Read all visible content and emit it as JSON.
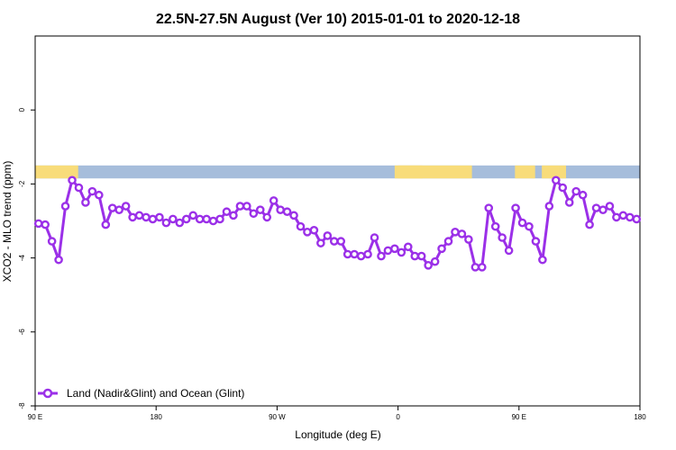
{
  "chart_data": {
    "type": "line",
    "title": "22.5N-27.5N August (Ver 10)   2015-01-01 to 2020-12-18",
    "xlabel": "Longitude (deg E)",
    "ylabel": "XCO2 - MLO trend (ppm)",
    "x_ticks": [
      {
        "value": 90,
        "label": "90 E"
      },
      {
        "value": 180,
        "label": "180"
      },
      {
        "value": 270,
        "label": "90 W"
      },
      {
        "value": 360,
        "label": "0"
      },
      {
        "value": 450,
        "label": "90 E"
      },
      {
        "value": 540,
        "label": "180"
      }
    ],
    "y_ticks": [
      {
        "value": 0,
        "label": "0"
      },
      {
        "value": -2,
        "label": "-2"
      },
      {
        "value": -4,
        "label": "-4"
      },
      {
        "value": -6,
        "label": "-6"
      },
      {
        "value": -8,
        "label": "-8"
      }
    ],
    "xlim": [
      90,
      540
    ],
    "ylim": [
      -8,
      2
    ],
    "grid": false,
    "legend_position": "bottom-left",
    "land_ocean_strip": {
      "y_range": [
        -1.85,
        -1.5
      ],
      "ocean_color": "#a6bddb",
      "land_color": "#f8dc7a",
      "land_segments": [
        [
          90,
          122
        ],
        [
          357.5,
          378
        ],
        [
          467,
          480
        ],
        [
          480,
          485
        ],
        [
          360,
          415
        ],
        [
          447,
          462
        ],
        [
          480,
          480
        ]
      ]
    },
    "series": [
      {
        "name": "Land (Nadir&Glint) and Ocean (Glint)",
        "color": "#9b30e8",
        "x": [
          92.5,
          97.5,
          102.5,
          107.5,
          112.5,
          117.5,
          122.5,
          127.5,
          132.5,
          137.5,
          142.5,
          147.5,
          152.5,
          157.5,
          162.5,
          167.5,
          172.5,
          177.5,
          182.5,
          187.5,
          192.5,
          197.5,
          202.5,
          207.5,
          212.5,
          217.5,
          222.5,
          227.5,
          232.5,
          237.5,
          242.5,
          247.5,
          252.5,
          257.5,
          262.5,
          267.5,
          272.5,
          277.5,
          282.5,
          287.5,
          292.5,
          297.5,
          302.5,
          307.5,
          312.5,
          317.5,
          322.5,
          327.5,
          332.5,
          337.5,
          342.5,
          347.5,
          352.5,
          357.5,
          362.5,
          367.5,
          372.5,
          377.5,
          382.5,
          387.5,
          392.5,
          397.5,
          402.5,
          407.5,
          412.5,
          417.5,
          422.5,
          427.5,
          432.5,
          437.5,
          442.5,
          447.5,
          452.5,
          457.5,
          462.5,
          467.5,
          472.5,
          477.5,
          482.5,
          487.5,
          492.5,
          497.5,
          502.5,
          507.5,
          512.5,
          517.5,
          522.5,
          527.5,
          532.5,
          537.5
        ],
        "values": [
          -3.07,
          -3.1,
          -3.55,
          -4.05,
          -2.6,
          -1.9,
          -2.1,
          -2.5,
          -2.2,
          -2.3,
          -3.1,
          -2.65,
          -2.7,
          -2.6,
          -2.9,
          -2.85,
          -2.9,
          -2.95,
          -2.9,
          -3.05,
          -2.95,
          -3.05,
          -2.95,
          -2.85,
          -2.95,
          -2.95,
          -3.0,
          -2.95,
          -2.75,
          -2.85,
          -2.6,
          -2.6,
          -2.8,
          -2.7,
          -2.9,
          -2.45,
          -2.7,
          -2.75,
          -2.85,
          -3.15,
          -3.3,
          -3.25,
          -3.6,
          -3.4,
          -3.55,
          -3.55,
          -3.9,
          -3.9,
          -3.95,
          -3.9,
          -3.45,
          -3.95,
          -3.8,
          -3.75,
          -3.85,
          -3.7,
          -3.95,
          -3.95,
          -4.2,
          -4.1,
          -3.75,
          -3.55,
          -3.3,
          -3.35,
          -3.5,
          -4.25,
          -4.25,
          -2.65,
          -3.15,
          -3.45,
          -3.8,
          -2.65,
          -3.05,
          -3.15,
          -3.55,
          -4.05,
          -2.6,
          -1.9,
          -2.1,
          -2.5,
          -2.2,
          -2.3,
          -3.1,
          -2.65,
          -2.7,
          -2.6,
          -2.9,
          -2.85,
          -2.9,
          -2.95
        ]
      }
    ]
  }
}
